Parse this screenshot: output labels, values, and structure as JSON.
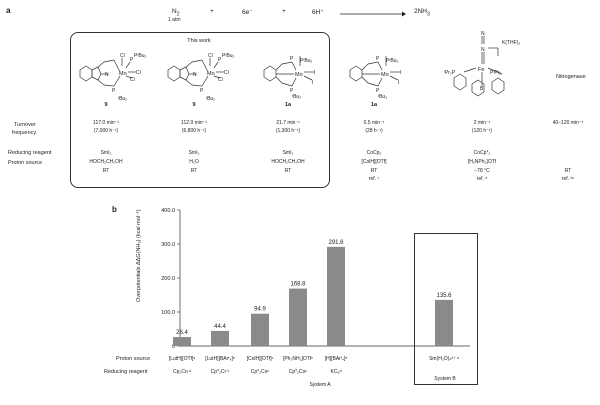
{
  "panel_a": {
    "label": "a",
    "equation": {
      "n2": "N",
      "n2_sub": "2",
      "atm": "1 atm",
      "plus1": "+",
      "electrons": "6e⁻",
      "plus2": "+",
      "protons": "6H⁺",
      "product": "2NH",
      "product_sub": "3"
    },
    "this_work": "This work",
    "compounds": [
      {
        "id": "9",
        "tof": "117.0 min⁻¹",
        "tof_h": "(7,000 h⁻¹)",
        "reductant": "SmI₂",
        "proton": "HOCH₂CH₂OH",
        "temp": "RT",
        "ref": ""
      },
      {
        "id": "9",
        "tof": "112.9 min⁻¹",
        "tof_h": "(6,800 h⁻¹)",
        "reductant": "SmI₂",
        "proton": "H₂O",
        "temp": "RT",
        "ref": ""
      },
      {
        "id": "1a",
        "tof": "21.7 min⁻¹",
        "tof_h": "(1,300 h⁻¹)",
        "reductant": "SmI₂",
        "proton": "HOCH₂CH₂OH",
        "temp": "RT",
        "ref": ""
      },
      {
        "id": "1a",
        "tof": "0.5 min⁻¹",
        "tof_h": "(28 h⁻¹)",
        "reductant": "CoCp₂",
        "proton": "[ColH][OTf]",
        "temp": "RT",
        "ref": "ref. ⁷"
      },
      {
        "id": "",
        "tof": "2 min⁻¹",
        "tof_h": "(120 h⁻¹)",
        "reductant": "CoCp*₂",
        "proton": "[H₂NPh₂]OTf",
        "temp": "−78 °C",
        "ref": "ref. ⁶"
      },
      {
        "id": "",
        "tof": "40–120 min⁻¹",
        "tof_h": "",
        "reductant": "",
        "proton": "",
        "temp": "RT",
        "ref": "ref. ²⁹"
      }
    ],
    "nitrogenase": "Nitrogenase",
    "row_labels": {
      "tof1": "Turnover",
      "tof2": "frequency",
      "reductant": "Reducing reagent",
      "proton": "Proton source"
    },
    "mol_labels": {
      "p1": "PᵗBu₂",
      "p2": "ᵗBu₂",
      "mo": "Mo",
      "cl": "Cl",
      "i": "I",
      "n": "N",
      "kthf": "K(THF)₃",
      "pr": "ⁱPr₂P",
      "pr2": "PⁱPr₂",
      "fe": "Fe",
      "b": "B"
    }
  },
  "panel_b": {
    "label": "b",
    "system_a": "System A",
    "system_b": "System B",
    "row_labels": {
      "proton": "Proton source",
      "reductant": "Reducing reagent"
    }
  },
  "chart_data": {
    "type": "bar",
    "ylabel": "Overpotentials ΔΔG(NH₃) (kcal mol⁻¹)",
    "ylim": [
      0,
      400
    ],
    "yticks": [
      "0",
      "100.0",
      "200.0",
      "300.0",
      "400.0"
    ],
    "categories": [
      "[LutH][OTf]",
      "[LutH][BArᶠ₄]",
      "[ColH][OTf]",
      "[Ph₂NH₂]OTf",
      "[H][BArᶠ₄]",
      "Sm(H₂O)ₙ²⁺"
    ],
    "proton_sources": [
      "[LutH][OTf]ᵃ",
      "[LutH][BArᶠ₄]ᵇ",
      "[ColH][OTf]ᶜ",
      "[Ph₂NH₂]OTfᶜ",
      "[H][BArᶠ₄]ᵈ",
      "Sm(H₂O)ₙ²⁺ ᵈ"
    ],
    "reductants": [
      "Cp₂Co ᵃ",
      "Cp*₂Cr ᵇ",
      "Cp*₂Coᶜ",
      "Cp*₂Coᶜ",
      "KC₈ᵈ",
      ""
    ],
    "values": [
      26.4,
      44.4,
      94.9,
      168.8,
      291.6,
      135.6
    ],
    "value_labels": [
      "26.4",
      "44.4",
      "94.9",
      "168.8",
      "291.6",
      "135.6"
    ],
    "colors": {
      "bar": "#8a8a8a"
    }
  }
}
